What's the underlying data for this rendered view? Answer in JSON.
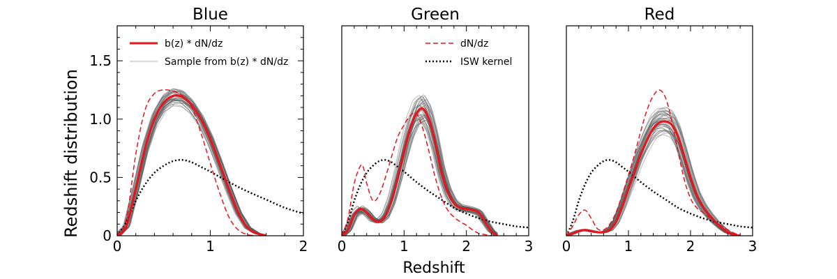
{
  "figure": {
    "ylabel": "Redshift distribution",
    "xlabel": "Redshift"
  },
  "colors": {
    "red": "#e8141c",
    "sample": "#5a5a5a",
    "isw": "#000000"
  },
  "chart_data": [
    {
      "type": "line",
      "title": "Blue",
      "xlim": [
        0,
        2
      ],
      "ylim": [
        0,
        1.8
      ],
      "xticks": [
        0,
        1,
        2
      ],
      "yticks": [
        0,
        0.5,
        1.0,
        1.5
      ],
      "ytick_labels": [
        "0",
        "0.5",
        "1.0",
        "1.5"
      ],
      "legend": {
        "placement": "top-left",
        "entries": [
          {
            "label": "b(z) * dN/dz",
            "style": "solid-red"
          },
          {
            "label": "Sample from b(z) * dN/dz",
            "style": "thin-grey"
          }
        ]
      },
      "series": [
        {
          "name": "b(z) * dN/dz",
          "style": "solid-red",
          "x": [
            0,
            0.1,
            0.2,
            0.3,
            0.4,
            0.5,
            0.6,
            0.7,
            0.8,
            0.9,
            1.0,
            1.1,
            1.2,
            1.3,
            1.4,
            1.5,
            1.6
          ],
          "y": [
            0,
            0.08,
            0.4,
            0.75,
            1.0,
            1.14,
            1.2,
            1.19,
            1.12,
            1.0,
            0.83,
            0.62,
            0.4,
            0.2,
            0.07,
            0.02,
            0
          ]
        },
        {
          "name": "dN/dz",
          "style": "dashed-red",
          "x": [
            0,
            0.1,
            0.2,
            0.3,
            0.4,
            0.5,
            0.6,
            0.7,
            0.8,
            0.9,
            1.0,
            1.1,
            1.2,
            1.3,
            1.4,
            1.5
          ],
          "y": [
            0,
            0.15,
            0.7,
            1.08,
            1.22,
            1.25,
            1.24,
            1.2,
            1.1,
            0.88,
            0.62,
            0.37,
            0.16,
            0.05,
            0.01,
            0
          ]
        },
        {
          "name": "ISW kernel",
          "style": "dotted-black",
          "x": [
            0,
            0.1,
            0.2,
            0.3,
            0.4,
            0.5,
            0.6,
            0.7,
            0.8,
            0.9,
            1.0,
            1.2,
            1.4,
            1.6,
            1.8,
            2.0
          ],
          "y": [
            0,
            0.12,
            0.3,
            0.44,
            0.54,
            0.6,
            0.64,
            0.65,
            0.63,
            0.59,
            0.55,
            0.46,
            0.38,
            0.31,
            0.24,
            0.19
          ]
        }
      ],
      "samples": {
        "count": 40,
        "base": "b(z) * dN/dz",
        "spread": 0.07
      }
    },
    {
      "type": "line",
      "title": "Green",
      "xlim": [
        0,
        3
      ],
      "ylim": [
        0,
        1.8
      ],
      "xticks": [
        0,
        1,
        2,
        3
      ],
      "legend": {
        "placement": "top-right",
        "entries": [
          {
            "label": "dN/dz",
            "style": "dashed-red"
          },
          {
            "label": "ISW kernel",
            "style": "dotted-black"
          }
        ]
      },
      "series": [
        {
          "name": "b(z) * dN/dz",
          "style": "solid-red",
          "x": [
            0,
            0.1,
            0.2,
            0.3,
            0.4,
            0.5,
            0.6,
            0.7,
            0.8,
            0.9,
            1.0,
            1.1,
            1.2,
            1.3,
            1.4,
            1.5,
            1.6,
            1.7,
            1.8,
            1.9,
            2.0,
            2.1,
            2.2,
            2.3,
            2.4,
            2.5
          ],
          "y": [
            0,
            0.05,
            0.18,
            0.23,
            0.2,
            0.14,
            0.12,
            0.17,
            0.3,
            0.5,
            0.72,
            0.92,
            1.05,
            1.09,
            1.0,
            0.8,
            0.55,
            0.38,
            0.28,
            0.24,
            0.23,
            0.22,
            0.2,
            0.12,
            0.04,
            0
          ]
        },
        {
          "name": "dN/dz",
          "style": "dashed-red",
          "x": [
            0,
            0.1,
            0.2,
            0.3,
            0.35,
            0.4,
            0.5,
            0.6,
            0.7,
            0.8,
            0.9,
            1.0,
            1.1,
            1.2,
            1.3,
            1.4,
            1.5,
            1.6,
            1.7,
            1.8,
            1.9,
            2.0,
            2.1,
            2.2,
            2.3,
            2.4
          ],
          "y": [
            0,
            0.15,
            0.45,
            0.6,
            0.58,
            0.45,
            0.3,
            0.35,
            0.5,
            0.68,
            0.85,
            0.95,
            1.03,
            1.05,
            0.92,
            0.72,
            0.5,
            0.33,
            0.22,
            0.16,
            0.12,
            0.09,
            0.05,
            0.02,
            0.01,
            0
          ]
        },
        {
          "name": "ISW kernel",
          "style": "dotted-black",
          "x": [
            0,
            0.1,
            0.2,
            0.3,
            0.4,
            0.5,
            0.6,
            0.7,
            0.8,
            0.9,
            1.0,
            1.2,
            1.4,
            1.6,
            1.8,
            2.0,
            2.2,
            2.4,
            2.6,
            2.8,
            3.0
          ],
          "y": [
            0,
            0.12,
            0.3,
            0.44,
            0.54,
            0.6,
            0.64,
            0.65,
            0.63,
            0.59,
            0.55,
            0.46,
            0.38,
            0.31,
            0.24,
            0.19,
            0.15,
            0.12,
            0.1,
            0.08,
            0.07
          ]
        }
      ],
      "samples": {
        "count": 40,
        "base": "b(z) * dN/dz",
        "spread": 0.12
      }
    },
    {
      "type": "line",
      "title": "Red",
      "xlim": [
        0,
        3
      ],
      "ylim": [
        0,
        1.8
      ],
      "xticks": [
        0,
        1,
        2,
        3
      ],
      "series": [
        {
          "name": "b(z) * dN/dz",
          "style": "solid-red",
          "x": [
            0,
            0.1,
            0.2,
            0.3,
            0.4,
            0.5,
            0.6,
            0.7,
            0.8,
            0.9,
            1.0,
            1.1,
            1.2,
            1.3,
            1.4,
            1.5,
            1.6,
            1.7,
            1.8,
            1.9,
            2.0,
            2.1,
            2.2,
            2.3,
            2.4,
            2.5,
            2.6,
            2.7,
            2.8
          ],
          "y": [
            0,
            0.02,
            0.04,
            0.05,
            0.04,
            0.03,
            0.03,
            0.05,
            0.12,
            0.25,
            0.4,
            0.55,
            0.7,
            0.82,
            0.92,
            0.97,
            0.98,
            0.95,
            0.85,
            0.68,
            0.5,
            0.35,
            0.25,
            0.18,
            0.12,
            0.07,
            0.03,
            0.01,
            0
          ]
        },
        {
          "name": "dN/dz",
          "style": "dashed-red",
          "x": [
            0,
            0.1,
            0.2,
            0.3,
            0.4,
            0.5,
            0.6,
            0.7,
            0.8,
            0.9,
            1.0,
            1.1,
            1.2,
            1.3,
            1.4,
            1.5,
            1.6,
            1.7,
            1.8,
            1.9,
            2.0,
            2.1,
            2.2,
            2.4,
            2.6,
            2.8
          ],
          "y": [
            0,
            0.08,
            0.18,
            0.22,
            0.15,
            0.06,
            0.05,
            0.1,
            0.2,
            0.35,
            0.52,
            0.7,
            0.9,
            1.08,
            1.2,
            1.25,
            1.18,
            0.98,
            0.72,
            0.48,
            0.32,
            0.24,
            0.2,
            0.12,
            0.05,
            0
          ]
        },
        {
          "name": "ISW kernel",
          "style": "dotted-black",
          "x": [
            0,
            0.1,
            0.2,
            0.3,
            0.4,
            0.5,
            0.6,
            0.7,
            0.8,
            0.9,
            1.0,
            1.2,
            1.4,
            1.6,
            1.8,
            2.0,
            2.2,
            2.4,
            2.6,
            2.8,
            3.0
          ],
          "y": [
            0,
            0.12,
            0.3,
            0.44,
            0.54,
            0.6,
            0.64,
            0.65,
            0.63,
            0.59,
            0.55,
            0.46,
            0.38,
            0.31,
            0.24,
            0.19,
            0.15,
            0.12,
            0.1,
            0.08,
            0.07
          ]
        }
      ],
      "samples": {
        "count": 40,
        "base": "b(z) * dN/dz",
        "spread": 0.11
      }
    }
  ]
}
